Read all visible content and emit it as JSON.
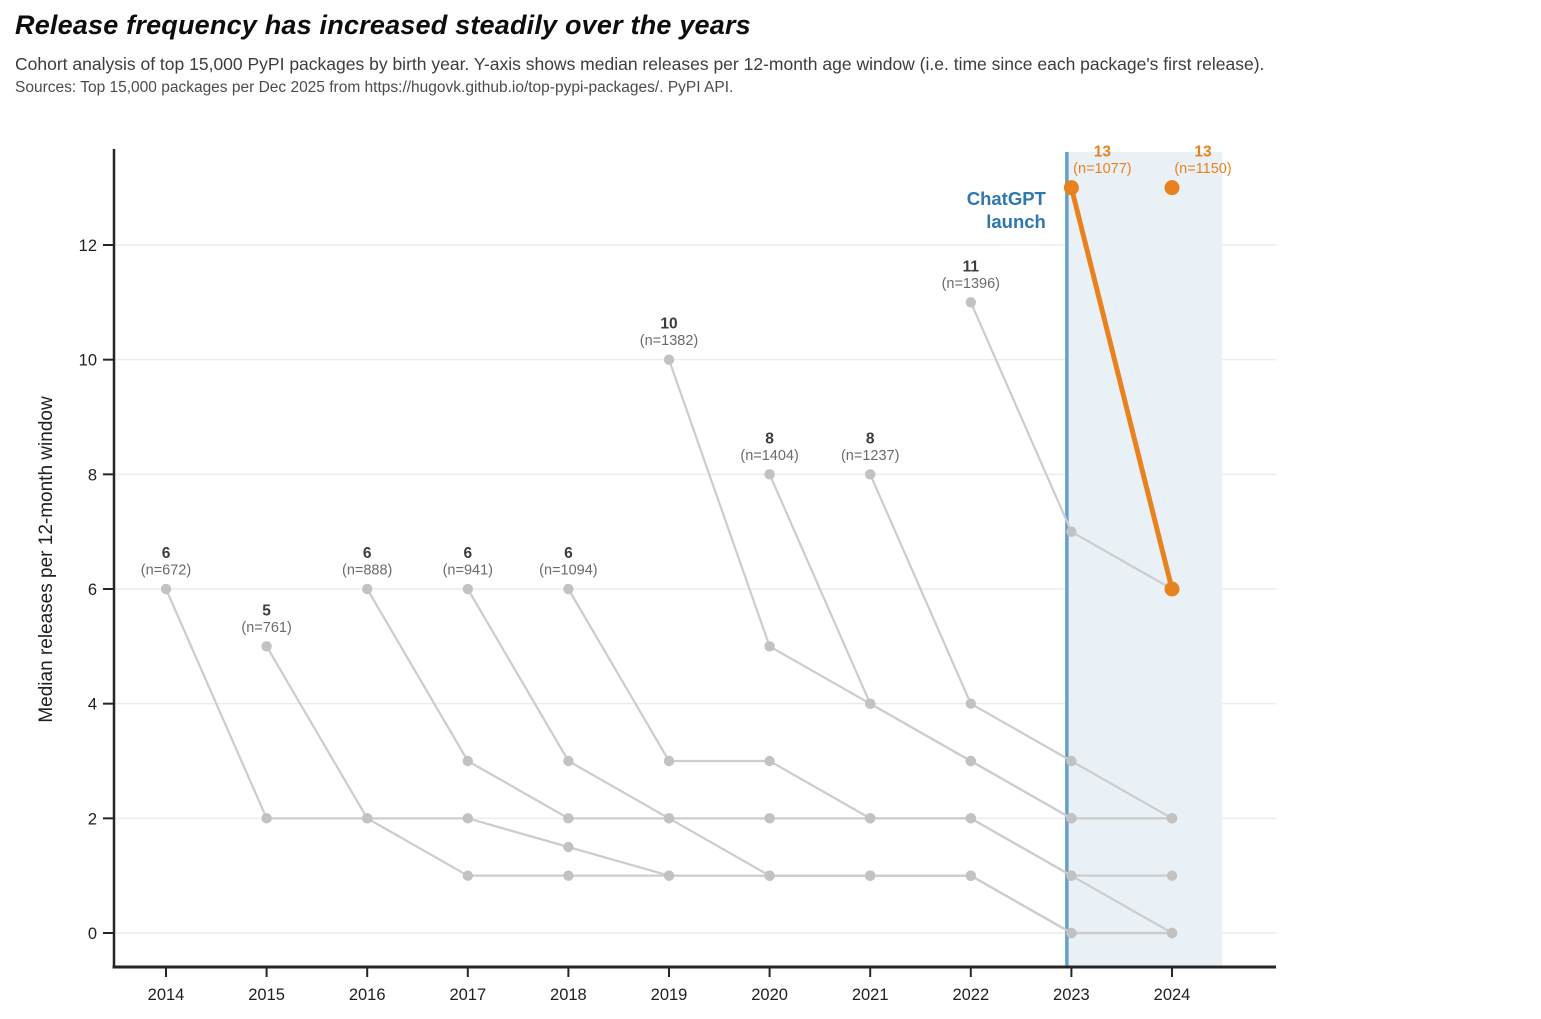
{
  "header": {
    "title": "Release frequency has increased steadily over the years",
    "subtitle": "Cohort analysis of top 15,000 PyPI packages by birth year. Y-axis shows median releases per 12-month age window (i.e. time since each package's first release).",
    "source": "Sources: Top 15,000 packages per Dec 2025 from https://hugovk.github.io/top-pypi-packages/. PyPI API."
  },
  "chart_data": {
    "type": "line",
    "title": "Release frequency has increased steadily over the years",
    "xlabel": "",
    "ylabel": "Median releases per 12-month window",
    "x_ticks": [
      2014,
      2015,
      2016,
      2017,
      2018,
      2019,
      2020,
      2021,
      2022,
      2023,
      2024
    ],
    "y_ticks": [
      0,
      2,
      4,
      6,
      8,
      10,
      12
    ],
    "xlim": [
      2013.45,
      2025.05
    ],
    "ylim": [
      -0.6,
      13.6
    ],
    "grid": "horizontal",
    "legend": "none",
    "series": [
      {
        "name": "2014 cohort",
        "start_year": 2014,
        "values": [
          6,
          2,
          2,
          2,
          1.5,
          1,
          1,
          1,
          1,
          0,
          0
        ],
        "peak_label": "6",
        "n": 672,
        "color_key": "grey"
      },
      {
        "name": "2015 cohort",
        "start_year": 2015,
        "values": [
          5,
          2,
          1,
          1,
          1,
          1,
          1,
          1,
          0,
          0
        ],
        "peak_label": "5",
        "n": 761,
        "color_key": "grey"
      },
      {
        "name": "2016 cohort",
        "start_year": 2016,
        "values": [
          6,
          3,
          2,
          2,
          1,
          1,
          1,
          0,
          0
        ],
        "peak_label": "6",
        "n": 888,
        "color_key": "grey"
      },
      {
        "name": "2017 cohort",
        "start_year": 2017,
        "values": [
          6,
          3,
          2,
          2,
          2,
          2,
          1,
          1
        ],
        "peak_label": "6",
        "n": 941,
        "color_key": "grey"
      },
      {
        "name": "2018 cohort",
        "start_year": 2018,
        "values": [
          6,
          3,
          3,
          2,
          2,
          1,
          0
        ],
        "peak_label": "6",
        "n": 1094,
        "color_key": "grey"
      },
      {
        "name": "2019 cohort",
        "start_year": 2019,
        "values": [
          10,
          5,
          4,
          3,
          2,
          2
        ],
        "peak_label": "10",
        "n": 1382,
        "color_key": "grey"
      },
      {
        "name": "2020 cohort",
        "start_year": 2020,
        "values": [
          8,
          4,
          3,
          2,
          2
        ],
        "peak_label": "8",
        "n": 1404,
        "color_key": "grey"
      },
      {
        "name": "2021 cohort",
        "start_year": 2021,
        "values": [
          8,
          4,
          3,
          2
        ],
        "peak_label": "8",
        "n": 1237,
        "color_key": "grey"
      },
      {
        "name": "2022 cohort",
        "start_year": 2022,
        "values": [
          11,
          7,
          6
        ],
        "peak_label": "11",
        "n": 1396,
        "color_key": "grey"
      },
      {
        "name": "2023 cohort",
        "start_year": 2023,
        "values": [
          13,
          6
        ],
        "peak_label": "13",
        "n": 1077,
        "color_key": "orange",
        "label_dx": 31
      },
      {
        "name": "2024 cohort",
        "start_year": 2024,
        "values": [
          13
        ],
        "peak_label": "13",
        "n": 1150,
        "color_key": "orange",
        "label_dx": 31
      }
    ],
    "annotation": {
      "label_line1": "ChatGPT",
      "label_line2": "launch",
      "x_year": 2022.955,
      "band_end_year": 2024.5,
      "text_color": "#2e78ad",
      "line_color": "#64a1c8",
      "band_color": "#e9f1f7"
    },
    "colors": {
      "grey_line": "#cdcdcd",
      "grey_marker": "#c2c2c2",
      "orange": "#e8821e",
      "label_value_grey": "#3d3d3d",
      "label_n_grey": "#6b6b6b",
      "gridline": "#ececec",
      "axis": "#262626",
      "tick_label": "#1f1f1f"
    }
  }
}
